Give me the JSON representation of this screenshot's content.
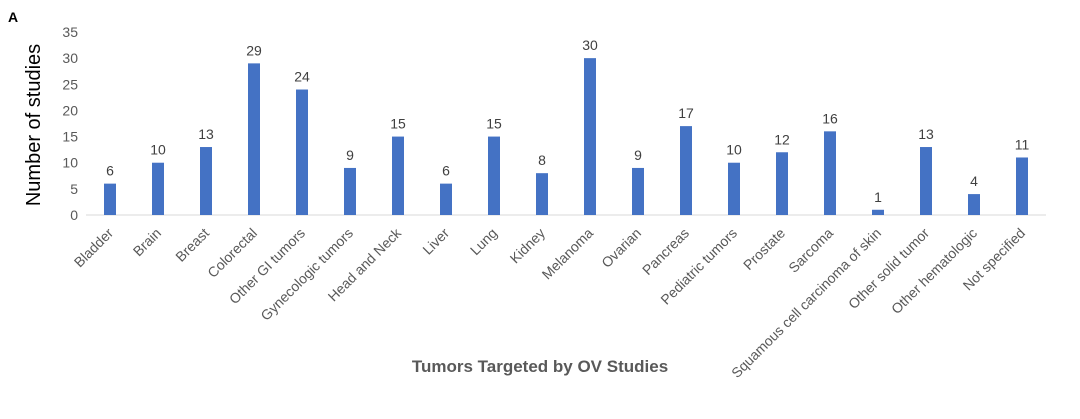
{
  "panel_label": "A",
  "chart_data": {
    "type": "bar",
    "categories": [
      "Bladder",
      "Brain",
      "Breast",
      "Colorectal",
      "Other GI tumors",
      "Gynecologic tumors",
      "Head and Neck",
      "Liver",
      "Lung",
      "Kidney",
      "Melanoma",
      "Ovarian",
      "Pancreas",
      "Pediatric tumors",
      "Prostate",
      "Sarcoma",
      "Squamous cell carcinoma of skin",
      "Other solid tumor",
      "Other hematologic",
      "Not specified"
    ],
    "values": [
      6,
      10,
      13,
      29,
      24,
      9,
      15,
      6,
      15,
      8,
      30,
      9,
      17,
      10,
      12,
      16,
      1,
      13,
      4,
      11
    ],
    "yticks": [
      "0",
      "5",
      "10",
      "15",
      "20",
      "25",
      "30",
      "35"
    ],
    "ylim": [
      0,
      35
    ],
    "ylabel": "Number of studies",
    "xlabel": "Tumors Targeted by OV Studies",
    "bar_color": "#4472c4",
    "axis_color": "#d9d9d9",
    "grid": false,
    "legend": "none"
  }
}
